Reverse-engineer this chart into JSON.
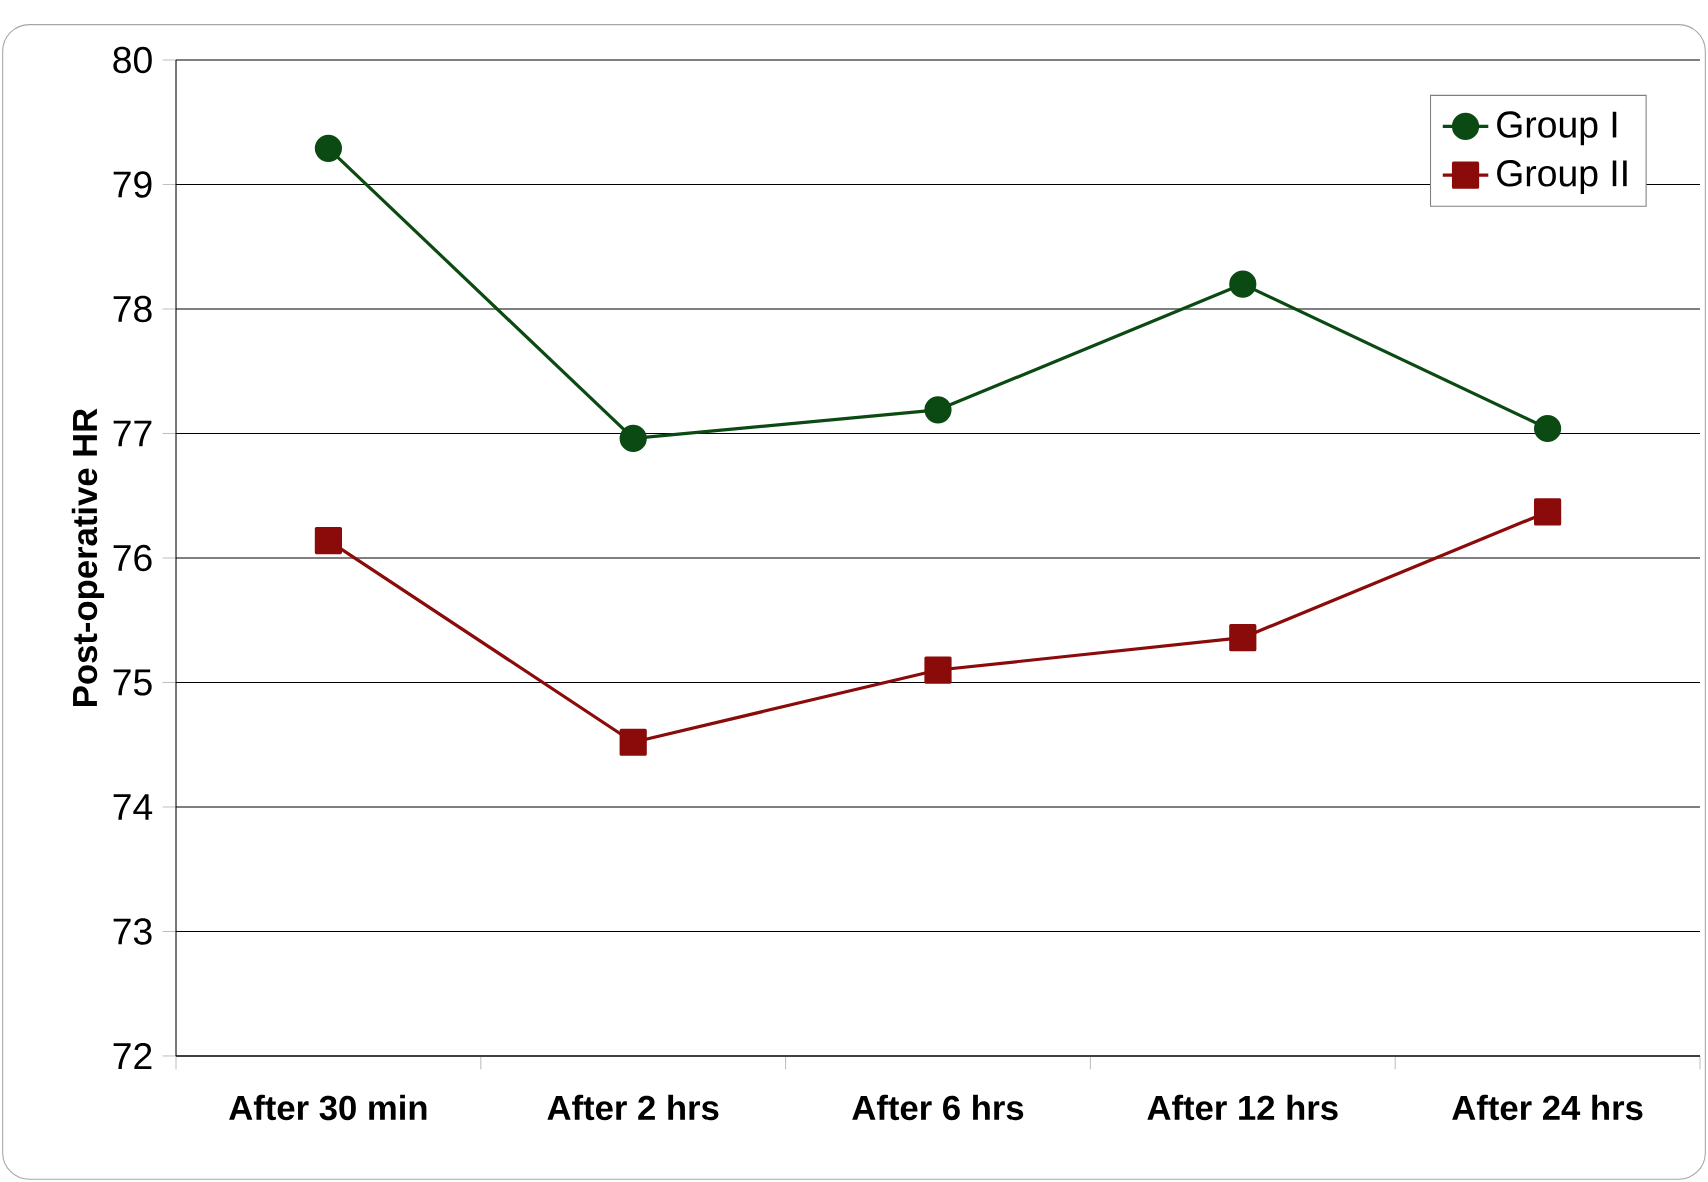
{
  "chart_data": {
    "type": "line",
    "ylabel": "Post-operative HR",
    "categories": [
      "After 30 min",
      "After 2 hrs",
      "After 6 hrs",
      "After 12 hrs",
      "After 24 hrs"
    ],
    "series": [
      {
        "name": "Group I",
        "color": "#0b4a12",
        "marker": "circle",
        "values": [
          79.29,
          76.96,
          77.19,
          78.2,
          77.04
        ]
      },
      {
        "name": "Group II",
        "color": "#8b0a0a",
        "marker": "square",
        "values": [
          76.14,
          74.52,
          75.1,
          75.36,
          76.37
        ]
      }
    ],
    "ylim": [
      72,
      80
    ],
    "yticks": [
      72,
      73,
      74,
      75,
      76,
      77,
      78,
      79,
      80
    ],
    "grid": "y",
    "legend": "top right",
    "line_style": "solid"
  }
}
